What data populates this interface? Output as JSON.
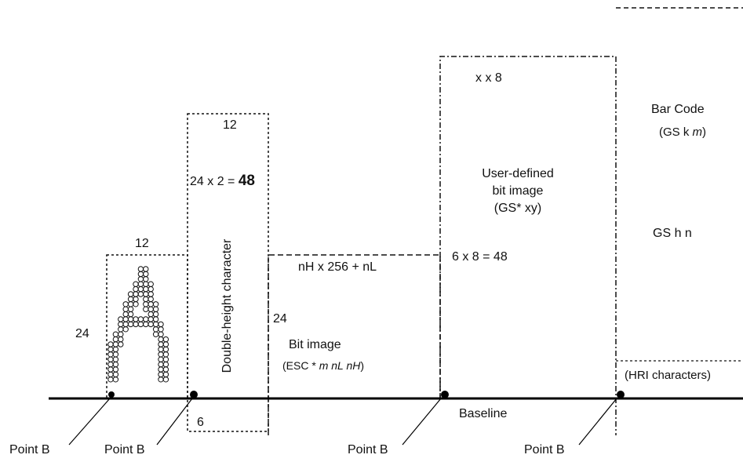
{
  "char_box": {
    "width_label": "12",
    "height_label": "24"
  },
  "double_height_box": {
    "width_label": "12",
    "height_prefix": "24 x 2 = ",
    "height_value": "48",
    "title": "Double-height character",
    "offset_label": "6"
  },
  "bit_image_box": {
    "width_label": "nH x 256 + nL",
    "height_label": "24",
    "title": "Bit image",
    "cmd_prefix": "(ESC * ",
    "cmd_args": "m nL nH",
    "cmd_suffix": ")"
  },
  "user_image_box": {
    "width_label": "x x 8",
    "height_label": "6 x 8 = 48",
    "title_line1": "User-defined",
    "title_line2": "bit image",
    "cmd": "(GS* xy)"
  },
  "barcode_box": {
    "title": "Bar Code",
    "cmd_prefix": "(GS k ",
    "cmd_arg": "m",
    "cmd_suffix": ")",
    "height_cmd": "GS h n",
    "hri": "(HRI characters)"
  },
  "baseline_label": "Baseline",
  "points": [
    "Point B",
    "Point B",
    "Point B",
    "Point B"
  ]
}
